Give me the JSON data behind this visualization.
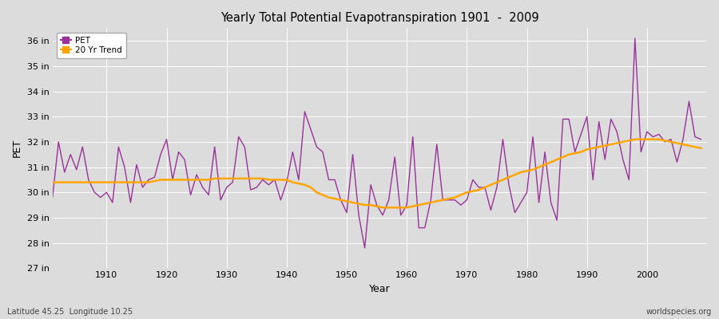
{
  "title": "Yearly Total Potential Evapotranspiration 1901  -  2009",
  "xlabel": "Year",
  "ylabel": "PET",
  "footer_left": "Latitude 45.25  Longitude 10.25",
  "footer_right": "worldspecies.org",
  "line_color": "#993399",
  "trend_color": "#FFA500",
  "bg_color": "#DCDCDC",
  "plot_bg_color": "#DCDCDC",
  "ylim": [
    27,
    36.5
  ],
  "yticks": [
    27,
    28,
    29,
    30,
    31,
    32,
    33,
    34,
    35,
    36
  ],
  "ytick_labels": [
    "27 in",
    "28 in",
    "29 in",
    "30 in",
    "31 in",
    "32 in",
    "33 in",
    "34 in",
    "35 in",
    "36 in"
  ],
  "years": [
    1901,
    1902,
    1903,
    1904,
    1905,
    1906,
    1907,
    1908,
    1909,
    1910,
    1911,
    1912,
    1913,
    1914,
    1915,
    1916,
    1917,
    1918,
    1919,
    1920,
    1921,
    1922,
    1923,
    1924,
    1925,
    1926,
    1927,
    1928,
    1929,
    1930,
    1931,
    1932,
    1933,
    1934,
    1935,
    1936,
    1937,
    1938,
    1939,
    1940,
    1941,
    1942,
    1943,
    1944,
    1945,
    1946,
    1947,
    1948,
    1949,
    1950,
    1951,
    1952,
    1953,
    1954,
    1955,
    1956,
    1957,
    1958,
    1959,
    1960,
    1961,
    1962,
    1963,
    1964,
    1965,
    1966,
    1967,
    1968,
    1969,
    1970,
    1971,
    1972,
    1973,
    1974,
    1975,
    1976,
    1977,
    1978,
    1979,
    1980,
    1981,
    1982,
    1983,
    1984,
    1985,
    1986,
    1987,
    1988,
    1989,
    1990,
    1991,
    1992,
    1993,
    1994,
    1995,
    1996,
    1997,
    1998,
    1999,
    2000,
    2001,
    2002,
    2003,
    2004,
    2005,
    2006,
    2007,
    2008,
    2009
  ],
  "pet_values": [
    29.8,
    32.0,
    30.8,
    31.5,
    30.9,
    31.8,
    30.5,
    30.0,
    29.8,
    30.0,
    29.6,
    31.8,
    31.0,
    29.6,
    31.1,
    30.2,
    30.5,
    30.6,
    31.5,
    32.1,
    30.5,
    31.6,
    31.3,
    29.9,
    30.7,
    30.2,
    29.9,
    31.8,
    29.7,
    30.2,
    30.4,
    32.2,
    31.8,
    30.1,
    30.2,
    30.5,
    30.3,
    30.5,
    29.7,
    30.4,
    31.6,
    30.5,
    33.2,
    32.5,
    31.8,
    31.6,
    30.5,
    30.5,
    29.7,
    29.2,
    31.5,
    29.1,
    27.8,
    30.3,
    29.5,
    29.1,
    29.7,
    31.4,
    29.1,
    29.5,
    32.2,
    28.6,
    28.6,
    29.7,
    31.9,
    29.7,
    29.7,
    29.7,
    29.5,
    29.7,
    30.5,
    30.2,
    30.2,
    29.3,
    30.2,
    32.1,
    30.3,
    29.2,
    29.6,
    30.0,
    32.2,
    29.6,
    31.6,
    29.6,
    28.9,
    32.9,
    32.9,
    31.6,
    32.3,
    33.0,
    30.5,
    32.8,
    31.3,
    32.9,
    32.4,
    31.3,
    30.5,
    36.1,
    31.6,
    32.4,
    32.2,
    32.3,
    32.0,
    32.1,
    31.2,
    32.1,
    33.6,
    32.2,
    32.1
  ],
  "trend_values": [
    30.4,
    30.4,
    30.4,
    30.4,
    30.4,
    30.4,
    30.4,
    30.4,
    30.4,
    30.4,
    30.4,
    30.4,
    30.4,
    30.4,
    30.4,
    30.4,
    30.4,
    30.45,
    30.5,
    30.5,
    30.5,
    30.5,
    30.5,
    30.5,
    30.5,
    30.5,
    30.5,
    30.55,
    30.55,
    30.55,
    30.55,
    30.55,
    30.55,
    30.55,
    30.55,
    30.55,
    30.5,
    30.5,
    30.5,
    30.5,
    30.4,
    30.35,
    30.3,
    30.2,
    30.0,
    29.9,
    29.8,
    29.75,
    29.7,
    29.65,
    29.6,
    29.55,
    29.5,
    29.5,
    29.45,
    29.4,
    29.4,
    29.4,
    29.4,
    29.4,
    29.45,
    29.5,
    29.55,
    29.6,
    29.65,
    29.7,
    29.75,
    29.8,
    29.9,
    30.0,
    30.05,
    30.1,
    30.2,
    30.3,
    30.4,
    30.5,
    30.6,
    30.7,
    30.8,
    30.85,
    30.9,
    31.0,
    31.1,
    31.2,
    31.3,
    31.4,
    31.5,
    31.55,
    31.6,
    31.7,
    31.75,
    31.8,
    31.85,
    31.9,
    31.95,
    32.0,
    32.05,
    32.1,
    32.1,
    32.1,
    32.1,
    32.1,
    32.05,
    32.0,
    31.95,
    31.9,
    31.85,
    31.8,
    31.75
  ]
}
